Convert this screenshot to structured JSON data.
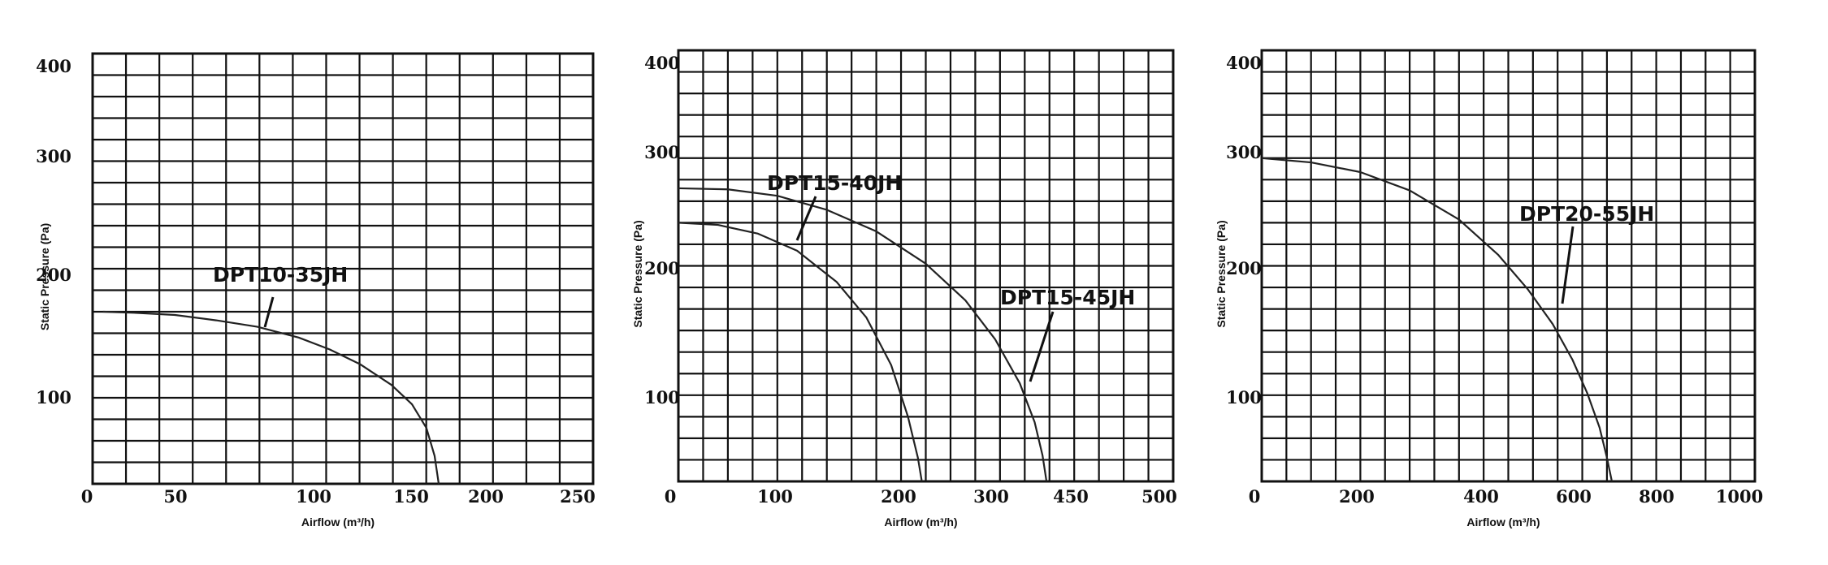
{
  "chart_data": [
    {
      "type": "line",
      "xlabel": "Airflow (m³/h)",
      "ylabel": "Static Pressure (Pa)",
      "x_ticks": [
        "0",
        "50",
        "100",
        "150",
        "200",
        "250"
      ],
      "y_ticks": [
        "400",
        "300",
        "200",
        "100"
      ],
      "xlim": [
        0,
        250
      ],
      "ylim": [
        0,
        400
      ],
      "grid": true,
      "series": [
        {
          "name": "DPT10-35JH",
          "x": [
            5,
            20,
            40,
            60,
            80,
            100,
            115,
            130,
            145,
            155,
            162,
            166,
            168
          ],
          "y": [
            160,
            159,
            157,
            152,
            146,
            136,
            125,
            111,
            92,
            74,
            52,
            26,
            0
          ]
        }
      ],
      "annotations": [
        "DPT10-35JH"
      ]
    },
    {
      "type": "line",
      "xlabel": "Airflow (m³/h)",
      "ylabel": "Static Pressure (Pa)",
      "x_ticks": [
        "0",
        "100",
        "200",
        "300",
        "450",
        "500"
      ],
      "y_ticks": [
        "400",
        "300",
        "200",
        "100"
      ],
      "xlim": [
        0,
        500
      ],
      "ylim": [
        0,
        400
      ],
      "grid": true,
      "series": [
        {
          "name": "DPT15-40JH",
          "x": [
            0,
            40,
            80,
            120,
            160,
            190,
            215,
            232,
            242,
            246
          ],
          "y": [
            240,
            238,
            230,
            214,
            185,
            152,
            108,
            60,
            22,
            0
          ]
        },
        {
          "name": "DPT15-45JH",
          "x": [
            0,
            50,
            100,
            150,
            200,
            250,
            290,
            320,
            345,
            360,
            368,
            372
          ],
          "y": [
            272,
            271,
            265,
            252,
            232,
            202,
            168,
            132,
            91,
            55,
            24,
            0
          ]
        }
      ],
      "annotations": [
        "DPT15-40JH",
        "DPT15-45JH"
      ]
    },
    {
      "type": "line",
      "xlabel": "Airflow (m³/h)",
      "ylabel": "Static Pressure (Pa)",
      "x_ticks": [
        "0",
        "200",
        "400",
        "600",
        "800",
        "1000"
      ],
      "y_ticks": [
        "400",
        "300",
        "200",
        "100"
      ],
      "xlim": [
        0,
        1000
      ],
      "ylim": [
        0,
        400
      ],
      "grid": true,
      "series": [
        {
          "name": "DPT20-55JH",
          "x": [
            0,
            100,
            200,
            300,
            400,
            480,
            540,
            590,
            630,
            660,
            685,
            700,
            710
          ],
          "y": [
            300,
            296,
            287,
            270,
            243,
            210,
            178,
            146,
            113,
            82,
            50,
            22,
            0
          ]
        }
      ],
      "annotations": [
        "DPT20-55JH"
      ]
    }
  ]
}
